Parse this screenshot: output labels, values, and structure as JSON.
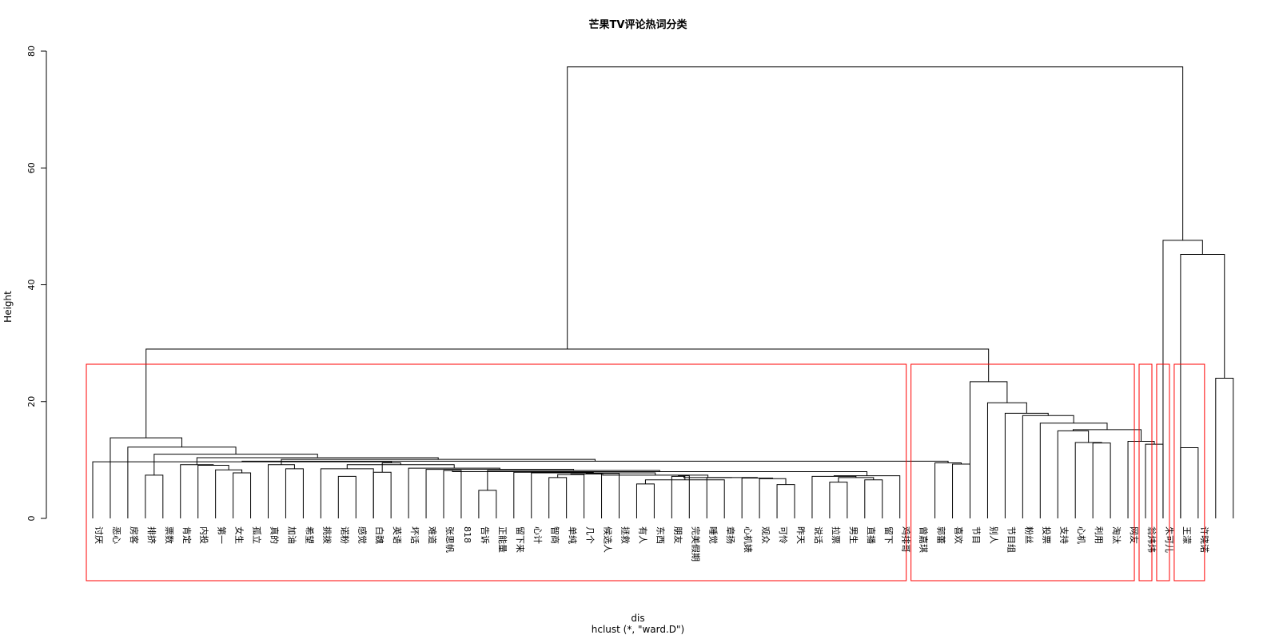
{
  "chart_data": {
    "type": "dendrogram",
    "title": "芒果TV评论热词分类",
    "ylabel": "Height",
    "xlabel": "dis",
    "subtitle": "hclust (*, \"ward.D\")",
    "ylim": [
      0,
      80
    ],
    "yticks": [
      0,
      20,
      40,
      60,
      80
    ],
    "leaf_labels": [
      "讨厌",
      "恶心",
      "房客",
      "排挤",
      "票数",
      "肯定",
      "内投",
      "第一",
      "女生",
      "孤立",
      "真的",
      "加油",
      "希望",
      "挑拨",
      "诺粉",
      "感觉",
      "白魏",
      "英语",
      "坏话",
      "难道",
      "张思帆",
      "818",
      "告诉",
      "正能量",
      "留下来",
      "心计",
      "智商",
      "单纯",
      "几个",
      "候选人",
      "拯救",
      "有人",
      "东西",
      "朋友",
      "完美假期",
      "睡觉",
      "章扬",
      "心机婊",
      "观众",
      "可怜",
      "昨天",
      "说话",
      "拉票",
      "男生",
      "直播",
      "留下",
      "鸡排哥",
      "曾嘉琪",
      "郭蕾",
      "喜欢",
      "节目",
      "别人",
      "节目组",
      "粉丝",
      "投票",
      "支持",
      "心机",
      "利用",
      "淘汰",
      "网友",
      "翁炜炜",
      "朱可儿",
      "王濛",
      "许晓诺"
    ],
    "merges": [
      {
        "left": {
          "leaf": 22
        },
        "right": {
          "leaf": 23
        },
        "height": 4.8
      },
      {
        "left": {
          "leaf": 31
        },
        "right": {
          "leaf": 32
        },
        "height": 5.9
      },
      {
        "left": {
          "leaf": 39
        },
        "right": {
          "leaf": 40
        },
        "height": 5.8
      },
      {
        "left": {
          "leaf": 42
        },
        "right": {
          "leaf": 43
        },
        "height": 6.2
      },
      {
        "left": {
          "leaf": 36
        },
        "right": {
          "merge": 1
        },
        "height": 6.6
      },
      {
        "left": {
          "leaf": 44
        },
        "right": {
          "leaf": 45
        },
        "height": 6.6
      },
      {
        "left": {
          "leaf": 26
        },
        "right": {
          "leaf": 27
        },
        "height": 7.0
      },
      {
        "left": {
          "leaf": 14
        },
        "right": {
          "leaf": 15
        },
        "height": 7.2
      },
      {
        "left": {
          "leaf": 3
        },
        "right": {
          "leaf": 4
        },
        "height": 7.4
      },
      {
        "left": {
          "merge": 3
        },
        "right": {
          "merge": 5
        },
        "height": 7.0
      },
      {
        "left": {
          "leaf": 38
        },
        "right": {
          "merge": 2
        },
        "height": 6.8
      },
      {
        "left": {
          "merge": 4
        },
        "right": {
          "leaf": 33
        },
        "height": 7.2
      },
      {
        "left": {
          "leaf": 41
        },
        "right": {
          "merge": 9
        },
        "height": 7.2
      },
      {
        "left": {
          "leaf": 37
        },
        "right": {
          "merge": 10
        },
        "height": 6.9
      },
      {
        "left": {
          "leaf": 8
        },
        "right": {
          "leaf": 9
        },
        "height": 7.8
      },
      {
        "left": {
          "leaf": 35
        },
        "right": {
          "merge": 13
        },
        "height": 7.0
      },
      {
        "left": {
          "leaf": 16
        },
        "right": {
          "leaf": 17
        },
        "height": 7.9
      },
      {
        "left": {
          "merge": 11
        },
        "right": {
          "leaf": 34
        },
        "height": 7.3
      },
      {
        "left": {
          "merge": 12
        },
        "right": {
          "leaf": 46
        },
        "height": 7.3
      },
      {
        "left": {
          "merge": 6
        },
        "right": {
          "leaf": 28
        },
        "height": 7.5
      },
      {
        "left": {
          "merge": 15
        },
        "right": {
          "merge": 17
        },
        "height": 7.0
      },
      {
        "left": {
          "merge": 19
        },
        "right": {
          "leaf": 29
        },
        "height": 7.6
      },
      {
        "left": {
          "merge": 21
        },
        "right": {
          "leaf": 30
        },
        "height": 7.7
      },
      {
        "left": {
          "merge": 22
        },
        "right": {
          "merge": 20
        },
        "height": 7.4
      },
      {
        "left": {
          "leaf": 25
        },
        "right": {
          "merge": 23
        },
        "height": 7.8
      },
      {
        "left": {
          "leaf": 20
        },
        "right": {
          "leaf": 21
        },
        "height": 8.2
      },
      {
        "left": {
          "leaf": 7
        },
        "right": {
          "merge": 14
        },
        "height": 8.3
      },
      {
        "left": {
          "leaf": 11
        },
        "right": {
          "leaf": 12
        },
        "height": 8.5
      },
      {
        "left": {
          "leaf": 13
        },
        "right": {
          "leaf": 16
        },
        "height": 8.5
      },
      {
        "left": {
          "leaf": 24
        },
        "right": {
          "merge": 24
        },
        "height": 7.9
      },
      {
        "left": {
          "merge": 25
        },
        "right": {
          "merge": 18
        },
        "height": 8.0
      },
      {
        "left": {
          "merge": 0
        },
        "right": {
          "merge": 30
        },
        "height": 8.2
      },
      {
        "left": {
          "merge": 27
        },
        "right": {
          "leaf": 10
        },
        "height": 9.2
      },
      {
        "left": {
          "leaf": 6
        },
        "right": {
          "merge": 26
        },
        "height": 9.1
      },
      {
        "left": {
          "leaf": 49
        },
        "right": {
          "leaf": 50
        },
        "height": 9.3
      },
      {
        "left": {
          "leaf": 48
        },
        "right": {
          "merge": 34
        },
        "height": 9.5
      },
      {
        "left": {
          "merge": 31
        },
        "right": {
          "leaf": 19
        },
        "height": 8.4
      },
      {
        "left": {
          "merge": 36
        },
        "right": {
          "leaf": 18
        },
        "height": 8.6
      },
      {
        "left": {
          "merge": 37
        },
        "right": {
          "merge": 28
        },
        "height": 9.2
      },
      {
        "left": {
          "merge": 38
        },
        "right": {
          "merge": 16
        },
        "height": 9.5
      },
      {
        "left": {
          "leaf": 5
        },
        "right": {
          "merge": 33
        },
        "height": 9.2
      },
      {
        "left": {
          "merge": 39
        },
        "right": {
          "leaf": 0
        },
        "height": 9.7
      },
      {
        "left": {
          "merge": 41
        },
        "right": {
          "merge": 35
        },
        "height": 9.8
      },
      {
        "left": {
          "merge": 32
        },
        "right": {
          "merge": 42
        },
        "height": 10.1
      },
      {
        "left": {
          "merge": 40
        },
        "right": {
          "merge": 43
        },
        "height": 10.4
      },
      {
        "left": {
          "merge": 8
        },
        "right": {
          "merge": 44
        },
        "height": 11.0
      },
      {
        "left": {
          "leaf": 2
        },
        "right": {
          "merge": 45
        },
        "height": 12.2
      },
      {
        "left": {
          "leaf": 1
        },
        "right": {
          "merge": 46
        },
        "height": 13.8
      },
      {
        "left": {
          "leaf": 62
        },
        "right": {
          "leaf": 63
        },
        "height": 12.1
      },
      {
        "left": {
          "leaf": 60
        },
        "right": {
          "leaf": 61
        },
        "height": 12.7
      },
      {
        "left": {
          "leaf": 57
        },
        "right": {
          "leaf": 58
        },
        "height": 12.9
      },
      {
        "left": {
          "leaf": 59
        },
        "right": {
          "merge": 49
        },
        "height": 13.2
      },
      {
        "left": {
          "leaf": 56
        },
        "right": {
          "merge": 50
        },
        "height": 13.0
      },
      {
        "left": {
          "merge": 52
        },
        "right": {
          "leaf": 55
        },
        "height": 15.0
      },
      {
        "left": {
          "merge": 51
        },
        "right": {
          "merge": 53
        },
        "height": 15.2
      },
      {
        "left": {
          "leaf": 54
        },
        "right": {
          "merge": 54
        },
        "height": 16.3
      },
      {
        "left": {
          "leaf": 53
        },
        "right": {
          "merge": 55
        },
        "height": 17.6
      },
      {
        "left": {
          "leaf": 52
        },
        "right": {
          "merge": 56
        },
        "height": 18.0
      },
      {
        "left": {
          "leaf": 51
        },
        "right": {
          "merge": 57
        },
        "height": 19.8
      },
      {
        "left": {
          "leaf": 50
        },
        "right": {
          "merge": 58
        },
        "height": 23.4
      },
      {
        "left": {
          "leaf": 64
        },
        "right": {
          "leaf": 65
        },
        "height": 24.0
      },
      {
        "left": {
          "merge": 47
        },
        "right": {
          "merge": 59
        },
        "height": 29.0
      },
      {
        "left": {
          "leaf": 62
        },
        "right": {
          "merge": 60
        },
        "height": 45.2
      },
      {
        "left": {
          "leaf": 61
        },
        "right": {
          "merge": 62
        },
        "height": 47.6
      },
      {
        "left": {
          "merge": 61
        },
        "right": {
          "merge": 63
        },
        "height": 77.3
      }
    ],
    "clusters": [
      {
        "first_leaf": 0,
        "last_leaf": 46
      },
      {
        "first_leaf": 47,
        "last_leaf": 59
      },
      {
        "first_leaf": 60,
        "last_leaf": 60
      },
      {
        "first_leaf": 61,
        "last_leaf": 61
      },
      {
        "first_leaf": 62,
        "last_leaf": 63
      }
    ],
    "cluster_box_color": "#ff0000",
    "line_color": "#000000"
  }
}
